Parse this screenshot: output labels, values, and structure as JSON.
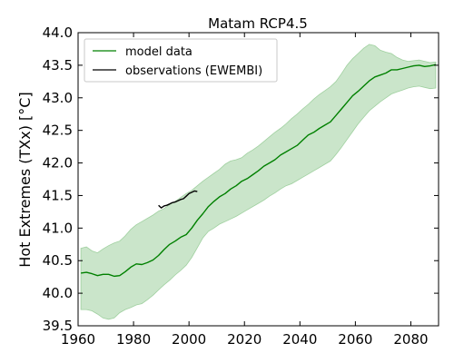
{
  "chart_data": {
    "type": "line",
    "title": "Matam RCP4.5",
    "xlabel": "",
    "ylabel": "Hot Extremes (TXx) [°C]",
    "xlim": [
      1960,
      2090
    ],
    "ylim": [
      39.5,
      44.0
    ],
    "x_ticks": [
      1960,
      1980,
      2000,
      2020,
      2040,
      2060,
      2080
    ],
    "y_ticks": [
      "39.5",
      "40.0",
      "40.5",
      "41.0",
      "41.5",
      "42.0",
      "42.5",
      "43.0",
      "43.5",
      "44.0"
    ],
    "grid": false,
    "legend_placement": "top-left",
    "series": [
      {
        "name": "model data",
        "color": "#008000",
        "x": [
          1961,
          1963,
          1965,
          1967,
          1969,
          1971,
          1973,
          1975,
          1977,
          1979,
          1981,
          1983,
          1985,
          1987,
          1989,
          1991,
          1993,
          1995,
          1997,
          1999,
          2001,
          2003,
          2005,
          2007,
          2009,
          2011,
          2013,
          2015,
          2017,
          2019,
          2021,
          2023,
          2025,
          2027,
          2029,
          2031,
          2033,
          2035,
          2037,
          2039,
          2041,
          2043,
          2045,
          2047,
          2049,
          2051,
          2053,
          2055,
          2057,
          2059,
          2061,
          2063,
          2065,
          2067,
          2069,
          2071,
          2073,
          2075,
          2077,
          2079,
          2081,
          2083,
          2085,
          2087,
          2089
        ],
        "values": [
          40.31,
          40.32,
          40.3,
          40.27,
          40.29,
          40.29,
          40.26,
          40.27,
          40.33,
          40.4,
          40.45,
          40.44,
          40.47,
          40.51,
          40.58,
          40.67,
          40.75,
          40.8,
          40.86,
          40.9,
          41.0,
          41.12,
          41.22,
          41.33,
          41.41,
          41.48,
          41.53,
          41.6,
          41.65,
          41.72,
          41.76,
          41.82,
          41.88,
          41.95,
          42.0,
          42.05,
          42.12,
          42.17,
          42.22,
          42.27,
          42.35,
          42.43,
          42.47,
          42.53,
          42.58,
          42.63,
          42.73,
          42.83,
          42.93,
          43.03,
          43.1,
          43.18,
          43.26,
          43.32,
          43.35,
          43.38,
          43.43,
          43.43,
          43.45,
          43.47,
          43.49,
          43.5,
          43.48,
          43.49,
          43.51
        ],
        "lower": [
          39.75,
          39.75,
          39.73,
          39.68,
          39.62,
          39.6,
          39.62,
          39.7,
          39.75,
          39.78,
          39.82,
          39.84,
          39.9,
          39.97,
          40.05,
          40.13,
          40.2,
          40.28,
          40.35,
          40.43,
          40.55,
          40.7,
          40.85,
          40.95,
          41.0,
          41.06,
          41.1,
          41.14,
          41.18,
          41.23,
          41.28,
          41.33,
          41.38,
          41.43,
          41.49,
          41.54,
          41.6,
          41.65,
          41.68,
          41.73,
          41.78,
          41.83,
          41.88,
          41.93,
          41.98,
          42.03,
          42.13,
          42.24,
          42.36,
          42.48,
          42.6,
          42.7,
          42.8,
          42.87,
          42.94,
          43.0,
          43.06,
          43.09,
          43.12,
          43.15,
          43.17,
          43.18,
          43.16,
          43.14,
          43.15
        ],
        "upper": [
          40.69,
          40.71,
          40.65,
          40.62,
          40.68,
          40.73,
          40.77,
          40.8,
          40.88,
          40.98,
          41.05,
          41.1,
          41.15,
          41.2,
          41.26,
          41.3,
          41.36,
          41.41,
          41.47,
          41.53,
          41.58,
          41.65,
          41.72,
          41.78,
          41.84,
          41.9,
          41.98,
          42.03,
          42.05,
          42.08,
          42.15,
          42.2,
          42.26,
          42.33,
          42.4,
          42.47,
          42.53,
          42.6,
          42.68,
          42.75,
          42.83,
          42.9,
          42.98,
          43.05,
          43.11,
          43.17,
          43.25,
          43.37,
          43.5,
          43.6,
          43.68,
          43.76,
          43.82,
          43.8,
          43.73,
          43.7,
          43.68,
          43.62,
          43.58,
          43.56,
          43.57,
          43.58,
          43.56,
          43.54,
          43.55
        ],
        "band_color": "#9fd09f"
      },
      {
        "name": "observations (EWEMBI)",
        "color": "#000000",
        "x": [
          1989,
          1990,
          1991,
          1992,
          1993,
          1994,
          1995,
          1996,
          1997,
          1998,
          1999,
          2000,
          2001,
          2002,
          2003
        ],
        "values": [
          41.35,
          41.31,
          41.34,
          41.35,
          41.37,
          41.39,
          41.4,
          41.42,
          41.44,
          41.45,
          41.49,
          41.53,
          41.55,
          41.57,
          41.56
        ]
      }
    ]
  }
}
